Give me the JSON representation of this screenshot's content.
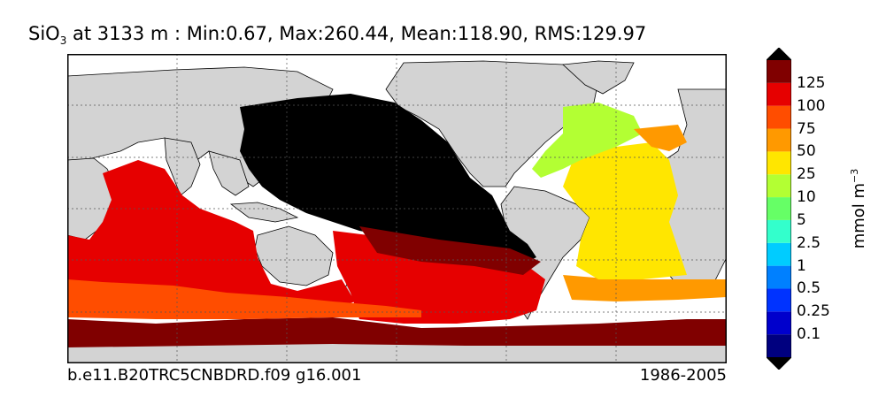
{
  "chart_data": {
    "type": "heatmap",
    "title": {
      "variable": "SiO",
      "subscript": "3",
      "rest": " at 3133 m : Min:0.67, Max:260.44, Mean:118.90, RMS:129.97"
    },
    "footer_left": "b.e11.B20TRC5CNBDRD.f09 g16.001",
    "footer_right": "1986-2005",
    "colorbar": {
      "label_main": "mmol m",
      "label_sup": "−3",
      "ticks": [
        "0.1",
        "0.25",
        "0.5",
        "1",
        "2.5",
        "5",
        "10",
        "25",
        "50",
        "75",
        "100",
        "125"
      ],
      "colors": [
        "#00007f",
        "#0000cc",
        "#0033ff",
        "#0080ff",
        "#00ccff",
        "#33ffcc",
        "#66ff66",
        "#b3ff33",
        "#ffe600",
        "#ff9900",
        "#ff4d00",
        "#e60000",
        "#800000"
      ],
      "extend": "both"
    },
    "land_color": "#d3d3d3",
    "ocean_missing_color": "#ffffff",
    "grid": true
  }
}
